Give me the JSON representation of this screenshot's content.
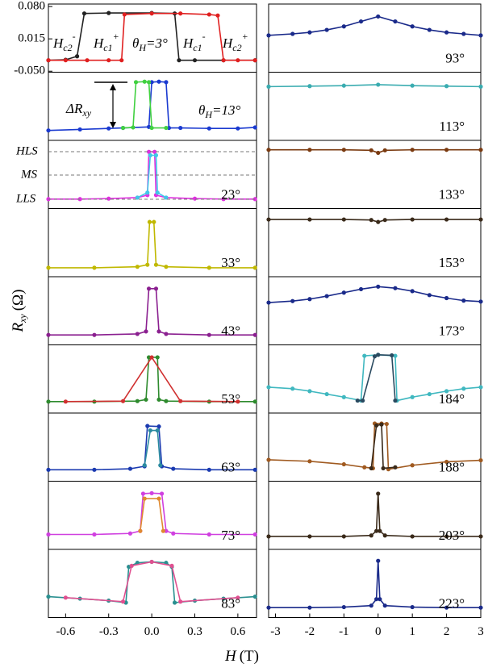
{
  "figure": {
    "xlabel": {
      "var": "H",
      "unit": "(T)"
    },
    "ylabel": {
      "var": "R",
      "sub": "xy",
      "unit": "(Ω)"
    }
  },
  "chart_data": [
    {
      "type": "line",
      "label": {
        "main": "θ",
        "sub": "H",
        "rest": "=3°"
      },
      "xlim": [
        -0.72,
        0.73
      ],
      "ylim": [
        -0.052,
        0.085
      ],
      "yticks": [
        {
          "value": 0.08,
          "label": "0.080"
        },
        0.015,
        {
          "value": -0.05,
          "label": "-0.050"
        }
      ],
      "annotations": [
        {
          "text": "H",
          "sub": "c2",
          "sup": "-"
        },
        {
          "text": "H",
          "sub": "c1",
          "sup": "+"
        },
        {
          "text": "H",
          "sub": "c1",
          "sup": "-"
        },
        {
          "text": "H",
          "sub": "c2",
          "sup": "+"
        }
      ],
      "series": [
        {
          "color": "#222222",
          "x": [
            -0.72,
            -0.6,
            -0.52,
            -0.47,
            -0.3,
            0.0,
            0.16,
            0.19,
            0.3,
            0.5,
            0.72
          ],
          "values": [
            -0.028,
            -0.027,
            -0.02,
            0.066,
            0.067,
            0.067,
            0.066,
            -0.028,
            -0.028,
            -0.028,
            -0.028
          ]
        },
        {
          "color": "#e02020",
          "x": [
            -0.72,
            -0.6,
            -0.45,
            -0.3,
            -0.21,
            -0.19,
            0.0,
            0.2,
            0.4,
            0.46,
            0.5,
            0.6,
            0.72
          ],
          "values": [
            -0.028,
            -0.028,
            -0.028,
            -0.028,
            -0.028,
            0.064,
            0.066,
            0.066,
            0.064,
            0.062,
            -0.028,
            -0.028,
            -0.028
          ]
        }
      ]
    },
    {
      "type": "line",
      "label": {
        "main": "θ",
        "sub": "H",
        "rest": "=13°"
      },
      "xlim": [
        -0.72,
        0.73
      ],
      "ylim": [
        -0.052,
        0.085
      ],
      "annotations": [
        {
          "text": "ΔR",
          "sub": "xy"
        }
      ],
      "series": [
        {
          "color": "#1a3ad0",
          "x": [
            -0.72,
            -0.5,
            -0.3,
            -0.2,
            -0.02,
            0.0,
            0.05,
            0.1,
            0.12,
            0.2,
            0.4,
            0.6,
            0.72
          ],
          "values": [
            -0.032,
            -0.03,
            -0.028,
            -0.027,
            -0.025,
            0.065,
            0.066,
            0.065,
            -0.027,
            -0.027,
            -0.028,
            -0.028,
            -0.026
          ]
        },
        {
          "color": "#40d040",
          "x": [
            -0.2,
            -0.13,
            -0.11,
            -0.05,
            -0.02,
            0.0,
            0.1
          ],
          "values": [
            -0.027,
            -0.026,
            0.065,
            0.066,
            0.065,
            -0.027,
            -0.027
          ]
        }
      ]
    },
    {
      "type": "line",
      "label": "23°",
      "xlim": [
        -0.72,
        0.73
      ],
      "ylim": [
        -0.052,
        0.085
      ],
      "annotations": [
        "HLS",
        "MS",
        "LLS"
      ],
      "series": [
        {
          "color": "#e030e0",
          "x": [
            -0.72,
            -0.5,
            -0.3,
            -0.1,
            -0.03,
            -0.02,
            0.02,
            0.03,
            0.1,
            0.3,
            0.5,
            0.72
          ],
          "values": [
            -0.033,
            -0.033,
            -0.032,
            -0.03,
            -0.025,
            0.062,
            0.062,
            -0.025,
            -0.03,
            -0.032,
            -0.033,
            -0.033
          ]
        },
        {
          "color": "#40c8e8",
          "x": [
            -0.1,
            -0.03,
            -0.01,
            0.03,
            0.04,
            0.1
          ],
          "values": [
            -0.03,
            -0.02,
            0.055,
            0.055,
            -0.02,
            -0.03
          ]
        }
      ]
    },
    {
      "type": "line",
      "label": "33°",
      "xlim": [
        -0.72,
        0.73
      ],
      "ylim": [
        -0.052,
        0.085
      ],
      "series": [
        {
          "color": "#c0b800",
          "x": [
            -0.72,
            -0.4,
            -0.1,
            -0.03,
            -0.015,
            0.015,
            0.03,
            0.1,
            0.4,
            0.72
          ],
          "values": [
            -0.034,
            -0.034,
            -0.032,
            -0.028,
            0.058,
            0.058,
            -0.028,
            -0.032,
            -0.034,
            -0.034
          ]
        }
      ]
    },
    {
      "type": "line",
      "label": "43°",
      "xlim": [
        -0.72,
        0.73
      ],
      "ylim": [
        -0.052,
        0.085
      ],
      "series": [
        {
          "color": "#8b2090",
          "x": [
            -0.72,
            -0.4,
            -0.1,
            -0.04,
            -0.02,
            0.03,
            0.05,
            0.1,
            0.4,
            0.72
          ],
          "values": [
            -0.032,
            -0.032,
            -0.03,
            -0.025,
            0.061,
            0.061,
            -0.025,
            -0.03,
            -0.032,
            -0.032
          ]
        }
      ]
    },
    {
      "type": "line",
      "label": "53°",
      "xlim": [
        -0.72,
        0.73
      ],
      "ylim": [
        -0.052,
        0.085
      ],
      "series": [
        {
          "color": "#2e8b2e",
          "x": [
            -0.72,
            -0.4,
            -0.1,
            -0.04,
            -0.02,
            0.04,
            0.05,
            0.1,
            0.4,
            0.72
          ],
          "values": [
            -0.029,
            -0.029,
            -0.028,
            -0.025,
            0.06,
            0.06,
            -0.025,
            -0.028,
            -0.029,
            -0.029
          ]
        },
        {
          "color": "#d03030",
          "x": [
            -0.6,
            -0.2,
            0.0,
            0.2,
            0.6
          ],
          "values": [
            -0.029,
            -0.028,
            0.06,
            -0.028,
            -0.029
          ]
        }
      ]
    },
    {
      "type": "line",
      "label": "63°",
      "xlim": [
        -0.72,
        0.73
      ],
      "ylim": [
        -0.052,
        0.085
      ],
      "series": [
        {
          "color": "#1a3ab0",
          "x": [
            -0.72,
            -0.4,
            -0.15,
            -0.05,
            -0.03,
            0.05,
            0.07,
            0.15,
            0.4,
            0.72
          ],
          "values": [
            -0.029,
            -0.029,
            -0.027,
            -0.022,
            0.059,
            0.058,
            -0.022,
            -0.027,
            -0.029,
            -0.029
          ]
        },
        {
          "color": "#2a8aa0",
          "x": [
            -0.05,
            -0.01,
            0.04,
            0.06
          ],
          "values": [
            -0.02,
            0.05,
            0.05,
            -0.02
          ]
        }
      ]
    },
    {
      "type": "line",
      "label": "73°",
      "xlim": [
        -0.72,
        0.73
      ],
      "ylim": [
        -0.052,
        0.085
      ],
      "series": [
        {
          "color": "#d040e0",
          "x": [
            -0.72,
            -0.4,
            -0.15,
            -0.08,
            -0.06,
            0.0,
            0.07,
            0.1,
            0.15,
            0.4,
            0.72
          ],
          "values": [
            -0.022,
            -0.022,
            -0.02,
            -0.015,
            0.06,
            0.061,
            0.06,
            -0.015,
            -0.02,
            -0.022,
            -0.022
          ]
        },
        {
          "color": "#e08a30",
          "x": [
            -0.08,
            -0.05,
            0.05,
            0.08
          ],
          "values": [
            -0.015,
            0.05,
            0.05,
            -0.015
          ]
        }
      ]
    },
    {
      "type": "line",
      "label": "83°",
      "xlim": [
        -0.72,
        0.73
      ],
      "ylim": [
        -0.052,
        0.085
      ],
      "xticks": [
        -0.6,
        -0.3,
        {
          "value": 0,
          "label": "0.0"
        },
        0.3,
        0.6
      ],
      "series": [
        {
          "color": "#2a9090",
          "x": [
            -0.72,
            -0.5,
            -0.3,
            -0.18,
            -0.16,
            -0.1,
            0.0,
            0.1,
            0.14,
            0.16,
            0.3,
            0.5,
            0.72
          ],
          "values": [
            -0.01,
            -0.014,
            -0.018,
            -0.022,
            0.05,
            0.058,
            0.06,
            0.058,
            0.05,
            -0.022,
            -0.018,
            -0.014,
            -0.01
          ]
        },
        {
          "color": "#e05090",
          "x": [
            -0.6,
            -0.2,
            -0.14,
            0.0,
            0.14,
            0.2,
            0.6
          ],
          "values": [
            -0.012,
            -0.02,
            0.052,
            0.06,
            0.052,
            -0.02,
            -0.012
          ]
        }
      ]
    },
    {
      "type": "line",
      "label": "93°",
      "xlim": [
        -3.2,
        3.0
      ],
      "ylim": [
        -0.052,
        0.085
      ],
      "series": [
        {
          "color": "#1a2a8a",
          "x": [
            -3.2,
            -2.5,
            -2,
            -1.5,
            -1,
            -0.5,
            0,
            0.5,
            1,
            1.5,
            2,
            2.5,
            3
          ],
          "values": [
            0.022,
            0.025,
            0.028,
            0.033,
            0.04,
            0.05,
            0.06,
            0.05,
            0.04,
            0.033,
            0.028,
            0.025,
            0.022
          ]
        }
      ]
    },
    {
      "type": "line",
      "label": "113°",
      "xlim": [
        -3.2,
        3.0
      ],
      "ylim": [
        -0.052,
        0.085
      ],
      "series": [
        {
          "color": "#3aacb0",
          "x": [
            -3.2,
            -2,
            -1,
            0,
            1,
            2,
            3
          ],
          "values": [
            0.056,
            0.057,
            0.058,
            0.06,
            0.058,
            0.057,
            0.056
          ]
        }
      ]
    },
    {
      "type": "line",
      "label": "133°",
      "xlim": [
        -3.2,
        3.0
      ],
      "ylim": [
        -0.052,
        0.085
      ],
      "series": [
        {
          "color": "#7a3a10",
          "x": [
            -3.2,
            -2,
            -1,
            -0.2,
            0,
            0.2,
            1,
            2,
            3
          ],
          "values": [
            0.066,
            0.066,
            0.066,
            0.065,
            0.06,
            0.065,
            0.066,
            0.066,
            0.066
          ]
        }
      ]
    },
    {
      "type": "line",
      "label": "153°",
      "xlim": [
        -3.2,
        3.0
      ],
      "ylim": [
        -0.052,
        0.085
      ],
      "series": [
        {
          "color": "#3a2a1a",
          "x": [
            -3.2,
            -2,
            -1,
            -0.2,
            0,
            0.2,
            1,
            2,
            3
          ],
          "values": [
            0.063,
            0.063,
            0.063,
            0.062,
            0.058,
            0.062,
            0.063,
            0.063,
            0.063
          ]
        }
      ]
    },
    {
      "type": "line",
      "label": "173°",
      "xlim": [
        -3.2,
        3.0
      ],
      "ylim": [
        -0.052,
        0.085
      ],
      "series": [
        {
          "color": "#1a2a8a",
          "x": [
            -3.2,
            -2.5,
            -2,
            -1.5,
            -1,
            -0.5,
            0,
            0.5,
            1,
            1.5,
            2,
            2.5,
            3
          ],
          "values": [
            0.033,
            0.036,
            0.04,
            0.046,
            0.053,
            0.06,
            0.065,
            0.062,
            0.056,
            0.048,
            0.042,
            0.037,
            0.035
          ]
        }
      ]
    },
    {
      "type": "line",
      "label": "184°",
      "xlim": [
        -3.2,
        3.0
      ],
      "ylim": [
        -0.052,
        0.085
      ],
      "series": [
        {
          "color": "#40b8c0",
          "x": [
            -3.2,
            -2.5,
            -2,
            -1.5,
            -1,
            -0.5,
            -0.4,
            0.0,
            0.5,
            0.55,
            1,
            1.5,
            2,
            2.5,
            3
          ],
          "values": [
            0.0,
            -0.003,
            -0.008,
            -0.014,
            -0.02,
            -0.027,
            0.063,
            0.065,
            0.063,
            -0.027,
            -0.02,
            -0.014,
            -0.008,
            -0.003,
            0.0
          ]
        },
        {
          "color": "#2a4a60",
          "x": [
            -0.6,
            -0.45,
            -0.1,
            0.0,
            0.4,
            0.5
          ],
          "values": [
            -0.027,
            -0.027,
            0.062,
            0.065,
            0.064,
            -0.027
          ]
        }
      ]
    },
    {
      "type": "line",
      "label": "188°",
      "xlim": [
        -3.2,
        3.0
      ],
      "ylim": [
        -0.052,
        0.085
      ],
      "series": [
        {
          "color": "#a05a20",
          "x": [
            -3.2,
            -2,
            -1,
            -0.4,
            -0.15,
            -0.1,
            0.1,
            0.25,
            0.3,
            1,
            2,
            3
          ],
          "values": [
            -0.009,
            -0.012,
            -0.018,
            -0.024,
            -0.026,
            0.064,
            0.064,
            0.063,
            -0.028,
            -0.02,
            -0.013,
            -0.01
          ]
        },
        {
          "color": "#3a2a1a",
          "x": [
            -0.2,
            -0.05,
            0.1,
            0.15,
            0.5
          ],
          "values": [
            -0.026,
            0.06,
            0.062,
            -0.026,
            -0.024
          ]
        }
      ]
    },
    {
      "type": "line",
      "label": "203°",
      "xlim": [
        -3.2,
        3.0
      ],
      "ylim": [
        -0.052,
        0.085
      ],
      "series": [
        {
          "color": "#3a2a1a",
          "x": [
            -3.2,
            -2,
            -1,
            -0.2,
            -0.05,
            0,
            0.05,
            0.2,
            1,
            2,
            3
          ],
          "values": [
            -0.026,
            -0.026,
            -0.026,
            -0.024,
            -0.015,
            0.06,
            -0.015,
            -0.024,
            -0.026,
            -0.026,
            -0.026
          ]
        }
      ]
    },
    {
      "type": "line",
      "label": "223°",
      "xlim": [
        -3.2,
        3.0
      ],
      "ylim": [
        -0.052,
        0.085
      ],
      "xticks": [
        -3,
        -2,
        -1,
        0,
        1,
        2,
        3
      ],
      "series": [
        {
          "color": "#1a2a8a",
          "x": [
            -3.2,
            -2,
            -1,
            -0.2,
            -0.05,
            0,
            0.05,
            0.2,
            1,
            2,
            3
          ],
          "values": [
            -0.032,
            -0.032,
            -0.031,
            -0.028,
            -0.015,
            0.062,
            -0.015,
            -0.028,
            -0.031,
            -0.032,
            -0.032
          ]
        }
      ]
    }
  ]
}
